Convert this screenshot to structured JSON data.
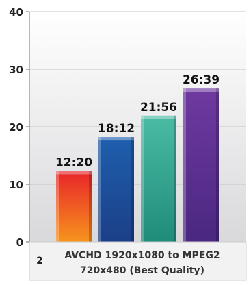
{
  "chart_data": {
    "type": "bar",
    "categories": [
      "AVCHD 1920x1080 to MPEG2 720x480 (Best Quality)"
    ],
    "series": [
      {
        "values": [
          12.33
        ],
        "label": "12:20",
        "color": "#ef4b20"
      },
      {
        "values": [
          18.2
        ],
        "label": "18:12",
        "color": "#1f5fae"
      },
      {
        "values": [
          21.93
        ],
        "label": "21:56",
        "color": "#3aa894"
      },
      {
        "values": [
          26.65
        ],
        "label": "26:39",
        "color": "#6a3596"
      }
    ],
    "y_ticks": [
      "0",
      "10",
      "20",
      "30",
      "40"
    ],
    "ylim": [
      0,
      40
    ],
    "grid": true,
    "legend": "none"
  },
  "footer": {
    "number": "2",
    "label_line1": "AVCHD 1920x1080 to MPEG2",
    "label_line2": "720x480 (Best Quality)"
  }
}
